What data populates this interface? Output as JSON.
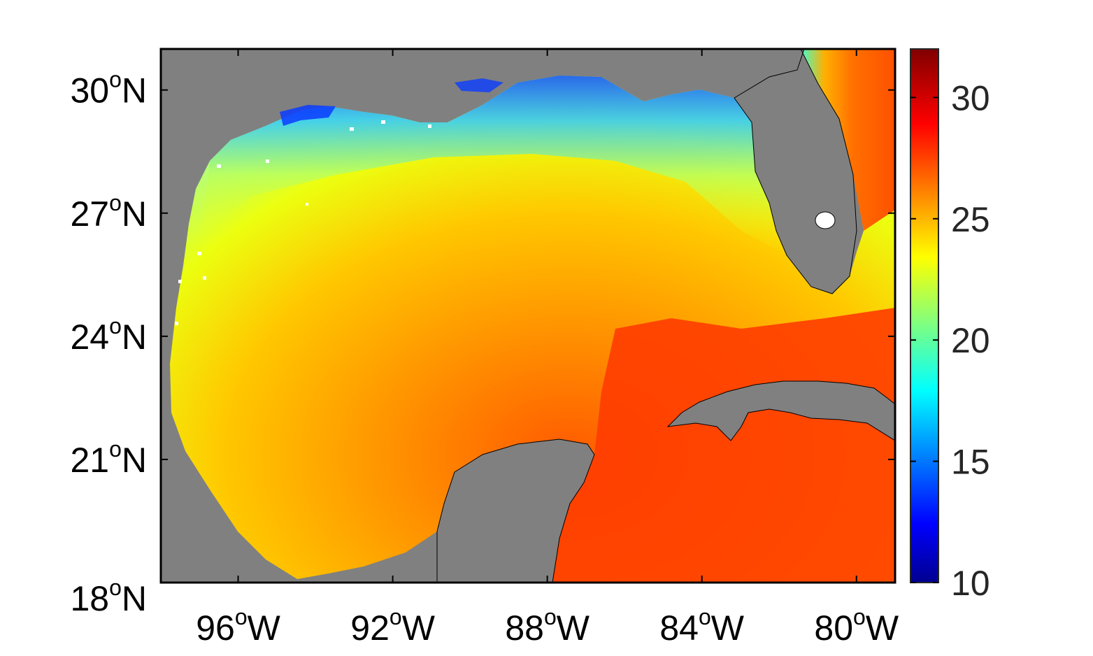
{
  "map": {
    "background_colors": {
      "land": "#808080",
      "frame": "#000000",
      "page": "#ffffff"
    },
    "lat_ticks": [
      {
        "deg": "30",
        "hemi": "N",
        "value": 30
      },
      {
        "deg": "27",
        "hemi": "N",
        "value": 27
      },
      {
        "deg": "24",
        "hemi": "N",
        "value": 24
      },
      {
        "deg": "21",
        "hemi": "N",
        "value": 21
      },
      {
        "deg": "18",
        "hemi": "N",
        "value": 18
      }
    ],
    "lon_ticks": [
      {
        "deg": "96",
        "hemi": "W",
        "value": -96
      },
      {
        "deg": "92",
        "hemi": "W",
        "value": -92
      },
      {
        "deg": "88",
        "hemi": "W",
        "value": -88
      },
      {
        "deg": "84",
        "hemi": "W",
        "value": -84
      },
      {
        "deg": "80",
        "hemi": "W",
        "value": -80
      }
    ],
    "degree_symbol": "o",
    "lon_range": [
      -98,
      -79
    ],
    "lat_range": [
      18,
      31
    ]
  },
  "colorbar": {
    "colormap": "jet",
    "range": [
      10,
      32
    ],
    "ticks": [
      "30",
      "25",
      "20",
      "15",
      "10"
    ],
    "tick_values": [
      30,
      25,
      20,
      15,
      10
    ]
  }
}
